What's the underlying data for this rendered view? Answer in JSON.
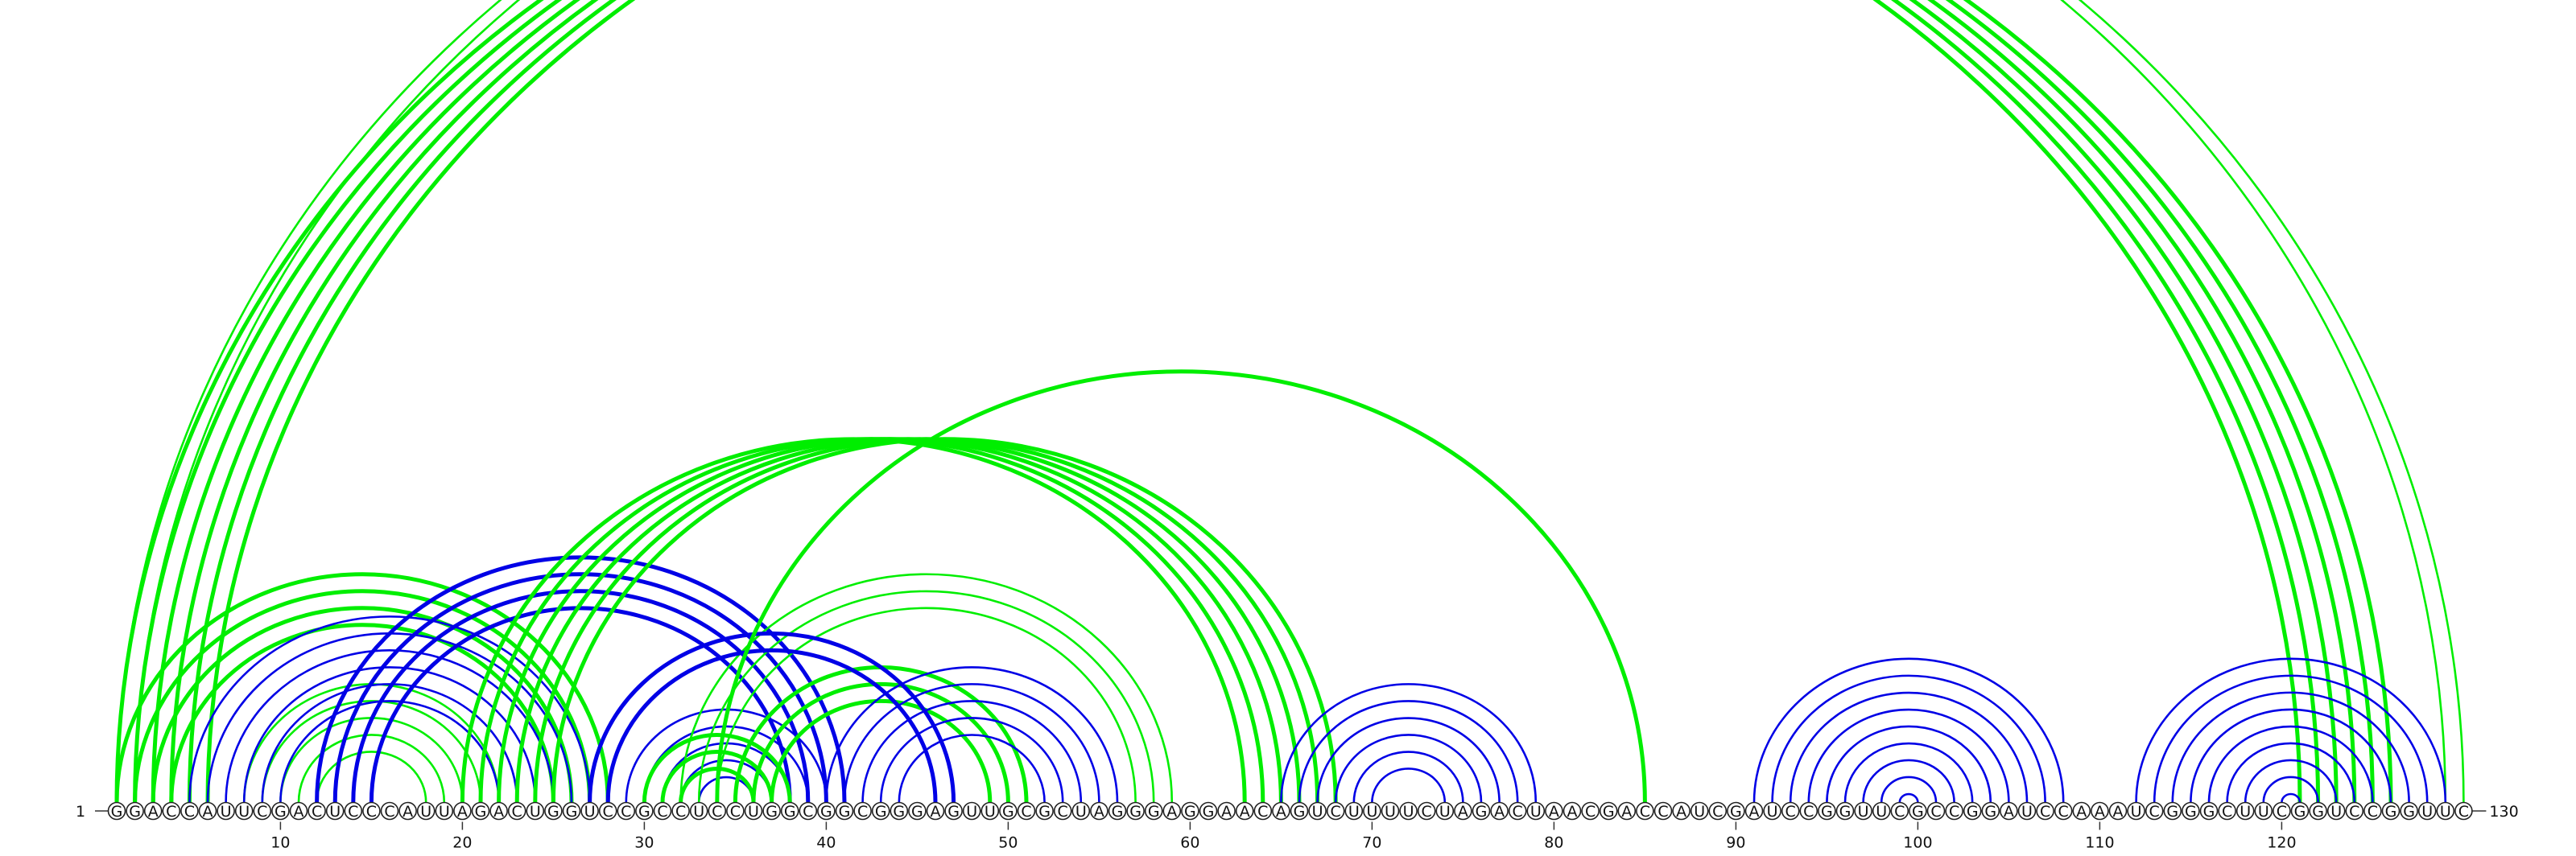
{
  "sequence": "GGACCAUUCGACUCCCAUUAGACUGGUCCGCCUCCUGGCGGCGGGAGUUGCGCUAGGGAGGAACAGUCUUUUCUAGACUAACGACCAUCGAUCCGGUUCGCCGGAUCCAAAUCGGGCUUCGGUCCGGUUC",
  "start_label": "1",
  "end_label": "130",
  "ticks": [
    10,
    20,
    30,
    40,
    50,
    60,
    70,
    80,
    90,
    100,
    110,
    120
  ],
  "colors": {
    "green": "#00ee00",
    "blue": "#0000e6",
    "backbone": "#333333"
  },
  "arc_groups": [
    {
      "color": "green",
      "bold": true,
      "pairs": [
        [
          1,
          121
        ],
        [
          2,
          122
        ],
        [
          3,
          123
        ],
        [
          4,
          124
        ],
        [
          5,
          125
        ],
        [
          6,
          126
        ]
      ]
    },
    {
      "color": "green",
      "bold": false,
      "pairs": [
        [
          1,
          129
        ],
        [
          2,
          130
        ]
      ]
    },
    {
      "color": "green",
      "bold": true,
      "pairs": [
        [
          1,
          28
        ],
        [
          2,
          27
        ],
        [
          3,
          26
        ],
        [
          4,
          25
        ]
      ]
    },
    {
      "color": "green",
      "bold": false,
      "pairs": [
        [
          8,
          22
        ],
        [
          9,
          21
        ],
        [
          10,
          20
        ],
        [
          11,
          19
        ],
        [
          12,
          18
        ]
      ]
    },
    {
      "color": "blue",
      "bold": false,
      "pairs": [
        [
          5,
          27
        ],
        [
          6,
          26
        ],
        [
          7,
          25
        ],
        [
          8,
          24
        ],
        [
          9,
          23
        ],
        [
          10,
          22
        ]
      ]
    },
    {
      "color": "blue",
      "bold": true,
      "pairs": [
        [
          12,
          41
        ],
        [
          13,
          40
        ],
        [
          14,
          39
        ],
        [
          15,
          38
        ]
      ]
    },
    {
      "color": "blue",
      "bold": false,
      "pairs": [
        [
          29,
          40
        ],
        [
          30,
          39
        ],
        [
          31,
          38
        ],
        [
          32,
          37
        ],
        [
          33,
          36
        ]
      ]
    },
    {
      "color": "green",
      "bold": true,
      "pairs": [
        [
          30,
          38
        ],
        [
          31,
          37
        ],
        [
          32,
          36
        ]
      ]
    },
    {
      "color": "green",
      "bold": false,
      "pairs": [
        [
          32,
          59
        ],
        [
          33,
          58
        ],
        [
          34,
          57
        ]
      ]
    },
    {
      "color": "green",
      "bold": true,
      "pairs": [
        [
          35,
          51
        ],
        [
          36,
          50
        ],
        [
          37,
          49
        ]
      ]
    },
    {
      "color": "blue",
      "bold": true,
      "pairs": [
        [
          28,
          46
        ],
        [
          27,
          47
        ]
      ]
    },
    {
      "color": "blue",
      "bold": false,
      "pairs": [
        [
          40,
          56
        ],
        [
          41,
          55
        ],
        [
          42,
          54
        ],
        [
          43,
          53
        ],
        [
          44,
          52
        ]
      ]
    },
    {
      "color": "green",
      "bold": true,
      "pairs": [
        [
          20,
          63
        ],
        [
          21,
          64
        ],
        [
          22,
          65
        ],
        [
          23,
          66
        ],
        [
          24,
          67
        ],
        [
          25,
          68
        ]
      ]
    },
    {
      "color": "green",
      "bold": true,
      "pairs": [
        [
          34,
          85
        ]
      ]
    },
    {
      "color": "blue",
      "bold": false,
      "pairs": [
        [
          65,
          79
        ],
        [
          66,
          78
        ],
        [
          67,
          77
        ],
        [
          68,
          76
        ],
        [
          69,
          75
        ],
        [
          70,
          74
        ]
      ]
    },
    {
      "color": "blue",
      "bold": false,
      "pairs": [
        [
          91,
          108
        ],
        [
          92,
          107
        ],
        [
          93,
          106
        ],
        [
          94,
          105
        ],
        [
          95,
          104
        ],
        [
          96,
          103
        ],
        [
          97,
          102
        ],
        [
          98,
          101
        ],
        [
          99,
          100
        ]
      ]
    },
    {
      "color": "blue",
      "bold": false,
      "pairs": [
        [
          112,
          129
        ],
        [
          113,
          128
        ],
        [
          114,
          127
        ],
        [
          115,
          126
        ],
        [
          116,
          125
        ],
        [
          117,
          124
        ],
        [
          118,
          123
        ],
        [
          119,
          122
        ],
        [
          120,
          121
        ]
      ]
    }
  ]
}
